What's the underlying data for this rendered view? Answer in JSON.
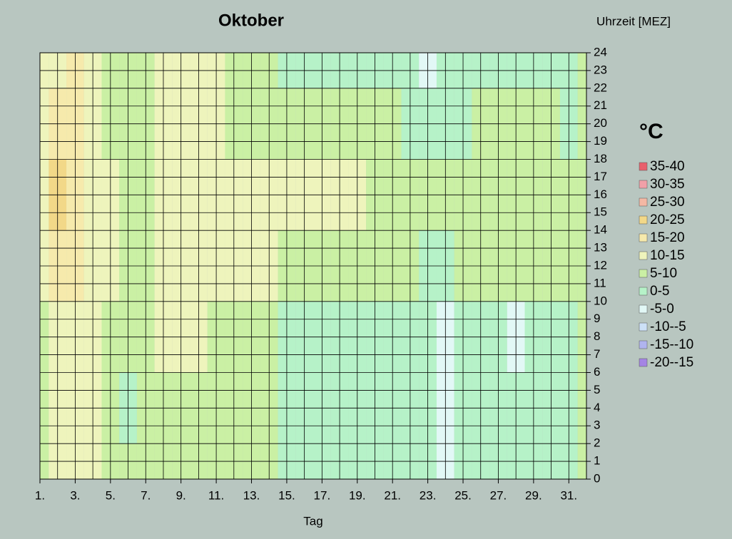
{
  "chart_data": {
    "type": "heatmap",
    "title": "Oktober",
    "y_axis_label": "Uhrzeit [MEZ]",
    "x_axis_label": "Tag",
    "legend_title": "°C",
    "x": [
      1,
      2,
      3,
      4,
      5,
      6,
      7,
      8,
      9,
      10,
      11,
      12,
      13,
      14,
      15,
      16,
      17,
      18,
      19,
      20,
      21,
      22,
      23,
      24,
      25,
      26,
      27,
      28,
      29,
      30,
      31,
      32
    ],
    "y": [
      0,
      4,
      8,
      12,
      16,
      20,
      24
    ],
    "z": [
      [
        8,
        11,
        11,
        10,
        8,
        6,
        7,
        8,
        9,
        8,
        7,
        7,
        7,
        6,
        4,
        3,
        3,
        3,
        3,
        3,
        3,
        3,
        2,
        -1,
        2,
        3,
        3,
        3,
        3,
        3,
        4,
        6
      ],
      [
        8,
        11,
        11,
        10,
        8,
        4,
        7,
        9,
        9,
        8,
        8,
        7,
        5,
        6,
        3,
        3,
        3,
        2,
        3,
        3,
        3,
        3,
        2,
        -1,
        2,
        3,
        3,
        2,
        3,
        3,
        4,
        6
      ],
      [
        9,
        13,
        12,
        11,
        9,
        5,
        8,
        10,
        11,
        10,
        9,
        8,
        7,
        5,
        4,
        4,
        3,
        2,
        1,
        3,
        3,
        3,
        2,
        -1,
        2,
        4,
        4,
        -1,
        3,
        4,
        4,
        6
      ],
      [
        12,
        17,
        16,
        13,
        11,
        8,
        9,
        11,
        12,
        12,
        11,
        12,
        11,
        10,
        9,
        9,
        9,
        8,
        8,
        6,
        5,
        6,
        4,
        2,
        5,
        7,
        7,
        6,
        6,
        6,
        5,
        6
      ],
      [
        12,
        21,
        17,
        13,
        10,
        9,
        8,
        11,
        12,
        12,
        12,
        13,
        11,
        11,
        11,
        11,
        11,
        11,
        10,
        9,
        8,
        6,
        5,
        6,
        6,
        7,
        7,
        7,
        7,
        6,
        5,
        7
      ],
      [
        11,
        16,
        15,
        12,
        8,
        8,
        8,
        11,
        12,
        12,
        11,
        9,
        9,
        8,
        8,
        8,
        8,
        7,
        6,
        7,
        5,
        4,
        3,
        3,
        4,
        6,
        7,
        6,
        7,
        6,
        4,
        6
      ],
      [
        11,
        13,
        15,
        11,
        8,
        8,
        8,
        11,
        12,
        12,
        11,
        8,
        8,
        5,
        4,
        4,
        4,
        4,
        4,
        4,
        3,
        3,
        -1,
        2,
        3,
        4,
        4,
        4,
        4,
        4,
        4,
        6
      ]
    ],
    "xlim": [
      1,
      32
    ],
    "ylim": [
      0,
      24
    ],
    "xticks": [
      {
        "value": 1,
        "label": "1."
      },
      {
        "value": 3,
        "label": "3."
      },
      {
        "value": 5,
        "label": "5."
      },
      {
        "value": 7,
        "label": "7."
      },
      {
        "value": 9,
        "label": "9."
      },
      {
        "value": 11,
        "label": "11."
      },
      {
        "value": 13,
        "label": "13."
      },
      {
        "value": 15,
        "label": "15."
      },
      {
        "value": 17,
        "label": "17."
      },
      {
        "value": 19,
        "label": "19."
      },
      {
        "value": 21,
        "label": "21."
      },
      {
        "value": 23,
        "label": "23."
      },
      {
        "value": 25,
        "label": "25."
      },
      {
        "value": 27,
        "label": "27."
      },
      {
        "value": 29,
        "label": "29."
      },
      {
        "value": 31,
        "label": "31."
      }
    ],
    "yticks": [
      0,
      1,
      2,
      3,
      4,
      5,
      6,
      7,
      8,
      9,
      10,
      11,
      12,
      13,
      14,
      15,
      16,
      17,
      18,
      19,
      20,
      21,
      22,
      23,
      24
    ],
    "grid": true,
    "legend_position": "right",
    "legend": [
      {
        "label": "35-40",
        "min": 35,
        "max": 40,
        "color": "#e8606c"
      },
      {
        "label": "30-35",
        "min": 30,
        "max": 35,
        "color": "#f0a0a8"
      },
      {
        "label": "25-30",
        "min": 25,
        "max": 30,
        "color": "#f4b8a4"
      },
      {
        "label": "20-25",
        "min": 20,
        "max": 25,
        "color": "#f2d888"
      },
      {
        "label": "15-20",
        "min": 15,
        "max": 20,
        "color": "#f6eaac"
      },
      {
        "label": "10-15",
        "min": 10,
        "max": 15,
        "color": "#eef4bc"
      },
      {
        "label": "5-10",
        "min": 5,
        "max": 10,
        "color": "#caf0a4"
      },
      {
        "label": "0-5",
        "min": 0,
        "max": 5,
        "color": "#b6f2c8"
      },
      {
        "label": "-5-0",
        "min": -5,
        "max": 0,
        "color": "#e2f8f6"
      },
      {
        "label": "-10--5",
        "min": -10,
        "max": -5,
        "color": "#cce0f6"
      },
      {
        "label": "-15--10",
        "min": -15,
        "max": -10,
        "color": "#b0b4ee"
      },
      {
        "label": "-20--15",
        "min": -20,
        "max": -15,
        "color": "#a484e4"
      }
    ]
  }
}
